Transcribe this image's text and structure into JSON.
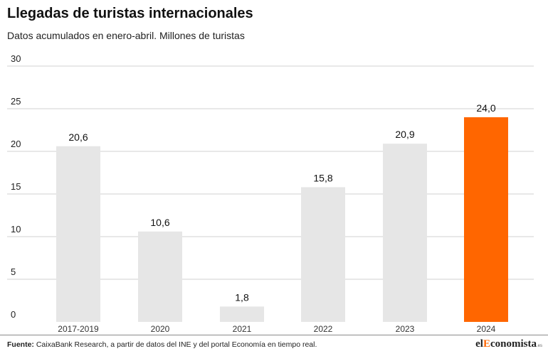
{
  "title": "Llegadas de turistas internacionales",
  "subtitle": "Datos acumulados en enero-abril. Millones de turistas",
  "chart_data": {
    "type": "bar",
    "categories": [
      "2017-2019",
      "2020",
      "2021",
      "2022",
      "2023",
      "2024"
    ],
    "values": [
      20.6,
      10.6,
      1.8,
      15.8,
      20.9,
      24.0
    ],
    "value_labels": [
      "20,6",
      "10,6",
      "1,8",
      "15,8",
      "20,9",
      "24,0"
    ],
    "yticks": [
      0,
      5,
      10,
      15,
      20,
      25,
      30
    ],
    "ylim": [
      0,
      30
    ],
    "grid": true,
    "colors": {
      "default_bar": "#e6e6e6",
      "highlight_bar": "#ff6600",
      "highlight_index": 5,
      "gridline": "#d0d0d0"
    }
  },
  "footer": {
    "source_label": "Fuente:",
    "source_text": "CaixaBank Research, a partir de datos del INE y del portal Economía en tiempo real.",
    "brand_prefix": "el",
    "brand_accent": "E",
    "brand_rest": "conomista",
    "brand_suffix": ".es"
  }
}
